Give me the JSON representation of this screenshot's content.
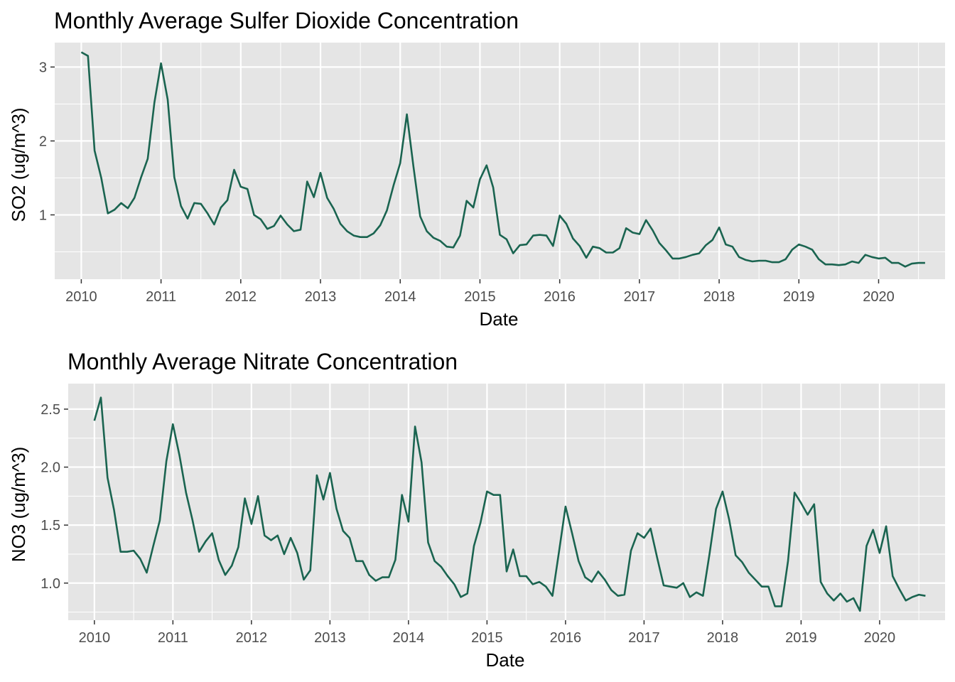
{
  "chart_data": [
    {
      "type": "line",
      "title": "Monthly Average Sulfer Dioxide Concentration",
      "xlabel": "Date",
      "ylabel": "SO2 (ug/m^3)",
      "x_ticks": [
        "2010",
        "2011",
        "2012",
        "2013",
        "2014",
        "2015",
        "2016",
        "2017",
        "2018",
        "2019",
        "2020"
      ],
      "y_ticks": [
        "1",
        "2",
        "3"
      ],
      "xlim": [
        "2009-09",
        "2020-11"
      ],
      "ylim": [
        0.13,
        3.33
      ],
      "grid": true,
      "line_color": "#1a6450",
      "x": [
        "2010-01",
        "2010-02",
        "2010-03",
        "2010-04",
        "2010-05",
        "2010-06",
        "2010-07",
        "2010-08",
        "2010-09",
        "2010-10",
        "2010-11",
        "2010-12",
        "2011-01",
        "2011-02",
        "2011-03",
        "2011-04",
        "2011-05",
        "2011-06",
        "2011-07",
        "2011-08",
        "2011-09",
        "2011-10",
        "2011-11",
        "2011-12",
        "2012-01",
        "2012-02",
        "2012-03",
        "2012-04",
        "2012-05",
        "2012-06",
        "2012-07",
        "2012-08",
        "2012-09",
        "2012-10",
        "2012-11",
        "2012-12",
        "2013-01",
        "2013-02",
        "2013-03",
        "2013-04",
        "2013-05",
        "2013-06",
        "2013-07",
        "2013-08",
        "2013-09",
        "2013-10",
        "2013-11",
        "2013-12",
        "2014-01",
        "2014-02",
        "2014-03",
        "2014-04",
        "2014-05",
        "2014-06",
        "2014-07",
        "2014-08",
        "2014-09",
        "2014-10",
        "2014-11",
        "2014-12",
        "2015-01",
        "2015-02",
        "2015-03",
        "2015-04",
        "2015-05",
        "2015-06",
        "2015-07",
        "2015-08",
        "2015-09",
        "2015-10",
        "2015-11",
        "2015-12",
        "2016-01",
        "2016-02",
        "2016-03",
        "2016-04",
        "2016-05",
        "2016-06",
        "2016-07",
        "2016-08",
        "2016-09",
        "2016-10",
        "2016-11",
        "2016-12",
        "2017-01",
        "2017-02",
        "2017-03",
        "2017-04",
        "2017-05",
        "2017-06",
        "2017-07",
        "2017-08",
        "2017-09",
        "2017-10",
        "2017-11",
        "2017-12",
        "2018-01",
        "2018-02",
        "2018-03",
        "2018-04",
        "2018-05",
        "2018-06",
        "2018-07",
        "2018-08",
        "2018-09",
        "2018-10",
        "2018-11",
        "2018-12",
        "2019-01",
        "2019-02",
        "2019-03",
        "2019-04",
        "2019-05",
        "2019-06",
        "2019-07",
        "2019-08",
        "2019-09",
        "2019-10",
        "2019-11",
        "2019-12",
        "2020-01",
        "2020-02",
        "2020-03",
        "2020-04",
        "2020-05",
        "2020-06",
        "2020-07",
        "2020-08"
      ],
      "values": [
        3.2,
        3.15,
        1.87,
        1.5,
        1.02,
        1.07,
        1.16,
        1.09,
        1.23,
        1.51,
        1.76,
        2.52,
        3.05,
        2.56,
        1.51,
        1.12,
        0.95,
        1.16,
        1.15,
        1.02,
        0.87,
        1.1,
        1.2,
        1.61,
        1.38,
        1.35,
        1.0,
        0.94,
        0.81,
        0.85,
        0.99,
        0.87,
        0.78,
        0.8,
        1.45,
        1.24,
        1.57,
        1.23,
        1.08,
        0.88,
        0.78,
        0.72,
        0.7,
        0.7,
        0.75,
        0.86,
        1.06,
        1.4,
        1.7,
        2.36,
        1.65,
        0.98,
        0.78,
        0.69,
        0.65,
        0.57,
        0.56,
        0.72,
        1.19,
        1.1,
        1.48,
        1.67,
        1.37,
        0.73,
        0.67,
        0.48,
        0.59,
        0.6,
        0.72,
        0.73,
        0.72,
        0.58,
        0.99,
        0.88,
        0.68,
        0.58,
        0.42,
        0.57,
        0.55,
        0.49,
        0.49,
        0.55,
        0.82,
        0.76,
        0.74,
        0.93,
        0.79,
        0.62,
        0.52,
        0.41,
        0.41,
        0.43,
        0.46,
        0.48,
        0.59,
        0.66,
        0.83,
        0.6,
        0.57,
        0.43,
        0.39,
        0.37,
        0.38,
        0.38,
        0.36,
        0.36,
        0.4,
        0.53,
        0.6,
        0.57,
        0.53,
        0.4,
        0.33,
        0.33,
        0.32,
        0.33,
        0.37,
        0.35,
        0.46,
        0.43,
        0.41,
        0.42,
        0.35,
        0.35,
        0.3,
        0.34,
        0.35,
        0.35
      ]
    },
    {
      "type": "line",
      "title": "Monthly Average Nitrate Concentration",
      "xlabel": "Date",
      "ylabel": "NO3 (ug/m^3)",
      "x_ticks": [
        "2010",
        "2011",
        "2012",
        "2013",
        "2014",
        "2015",
        "2016",
        "2017",
        "2018",
        "2019",
        "2020"
      ],
      "y_ticks": [
        "1.0",
        "1.5",
        "2.0",
        "2.5"
      ],
      "xlim": [
        "2009-09",
        "2020-11"
      ],
      "ylim": [
        0.68,
        2.72
      ],
      "grid": true,
      "line_color": "#1a6450",
      "x": [
        "2010-01",
        "2010-02",
        "2010-03",
        "2010-04",
        "2010-05",
        "2010-06",
        "2010-07",
        "2010-08",
        "2010-09",
        "2010-10",
        "2010-11",
        "2010-12",
        "2011-01",
        "2011-02",
        "2011-03",
        "2011-04",
        "2011-05",
        "2011-06",
        "2011-07",
        "2011-08",
        "2011-09",
        "2011-10",
        "2011-11",
        "2011-12",
        "2012-01",
        "2012-02",
        "2012-03",
        "2012-04",
        "2012-05",
        "2012-06",
        "2012-07",
        "2012-08",
        "2012-09",
        "2012-10",
        "2012-11",
        "2012-12",
        "2013-01",
        "2013-02",
        "2013-03",
        "2013-04",
        "2013-05",
        "2013-06",
        "2013-07",
        "2013-08",
        "2013-09",
        "2013-10",
        "2013-11",
        "2013-12",
        "2014-01",
        "2014-02",
        "2014-03",
        "2014-04",
        "2014-05",
        "2014-06",
        "2014-07",
        "2014-08",
        "2014-09",
        "2014-10",
        "2014-11",
        "2014-12",
        "2015-01",
        "2015-02",
        "2015-03",
        "2015-04",
        "2015-05",
        "2015-06",
        "2015-07",
        "2015-08",
        "2015-09",
        "2015-10",
        "2015-11",
        "2015-12",
        "2016-01",
        "2016-02",
        "2016-03",
        "2016-04",
        "2016-05",
        "2016-06",
        "2016-07",
        "2016-08",
        "2016-09",
        "2016-10",
        "2016-11",
        "2016-12",
        "2017-01",
        "2017-02",
        "2017-03",
        "2017-04",
        "2017-05",
        "2017-06",
        "2017-07",
        "2017-08",
        "2017-09",
        "2017-10",
        "2017-11",
        "2017-12",
        "2018-01",
        "2018-02",
        "2018-03",
        "2018-04",
        "2018-05",
        "2018-06",
        "2018-07",
        "2018-08",
        "2018-09",
        "2018-10",
        "2018-11",
        "2018-12",
        "2019-01",
        "2019-02",
        "2019-03",
        "2019-04",
        "2019-05",
        "2019-06",
        "2019-07",
        "2019-08",
        "2019-09",
        "2019-10",
        "2019-11",
        "2019-12",
        "2020-01",
        "2020-02",
        "2020-03",
        "2020-04",
        "2020-05",
        "2020-06",
        "2020-07",
        "2020-08"
      ],
      "values": [
        2.4,
        2.6,
        1.91,
        1.63,
        1.27,
        1.27,
        1.28,
        1.21,
        1.09,
        1.32,
        1.54,
        2.05,
        2.37,
        2.1,
        1.78,
        1.54,
        1.27,
        1.36,
        1.43,
        1.2,
        1.07,
        1.15,
        1.31,
        1.73,
        1.51,
        1.75,
        1.41,
        1.37,
        1.41,
        1.25,
        1.39,
        1.26,
        1.03,
        1.11,
        1.93,
        1.72,
        1.95,
        1.64,
        1.45,
        1.39,
        1.19,
        1.19,
        1.07,
        1.02,
        1.05,
        1.05,
        1.2,
        1.76,
        1.53,
        2.35,
        2.04,
        1.35,
        1.19,
        1.14,
        1.06,
        0.99,
        0.88,
        0.91,
        1.32,
        1.52,
        1.79,
        1.76,
        1.76,
        1.1,
        1.29,
        1.06,
        1.06,
        0.99,
        1.01,
        0.97,
        0.89,
        1.27,
        1.66,
        1.43,
        1.19,
        1.05,
        1.01,
        1.1,
        1.03,
        0.94,
        0.89,
        0.9,
        1.28,
        1.43,
        1.39,
        1.47,
        1.22,
        0.98,
        0.97,
        0.96,
        1.0,
        0.88,
        0.92,
        0.89,
        1.25,
        1.64,
        1.79,
        1.55,
        1.24,
        1.18,
        1.09,
        1.03,
        0.97,
        0.97,
        0.8,
        0.8,
        1.19,
        1.78,
        1.69,
        1.59,
        1.68,
        1.01,
        0.91,
        0.85,
        0.91,
        0.84,
        0.87,
        0.76,
        1.32,
        1.46,
        1.26,
        1.49,
        1.06,
        0.95,
        0.85,
        0.88,
        0.9,
        0.89
      ]
    }
  ]
}
